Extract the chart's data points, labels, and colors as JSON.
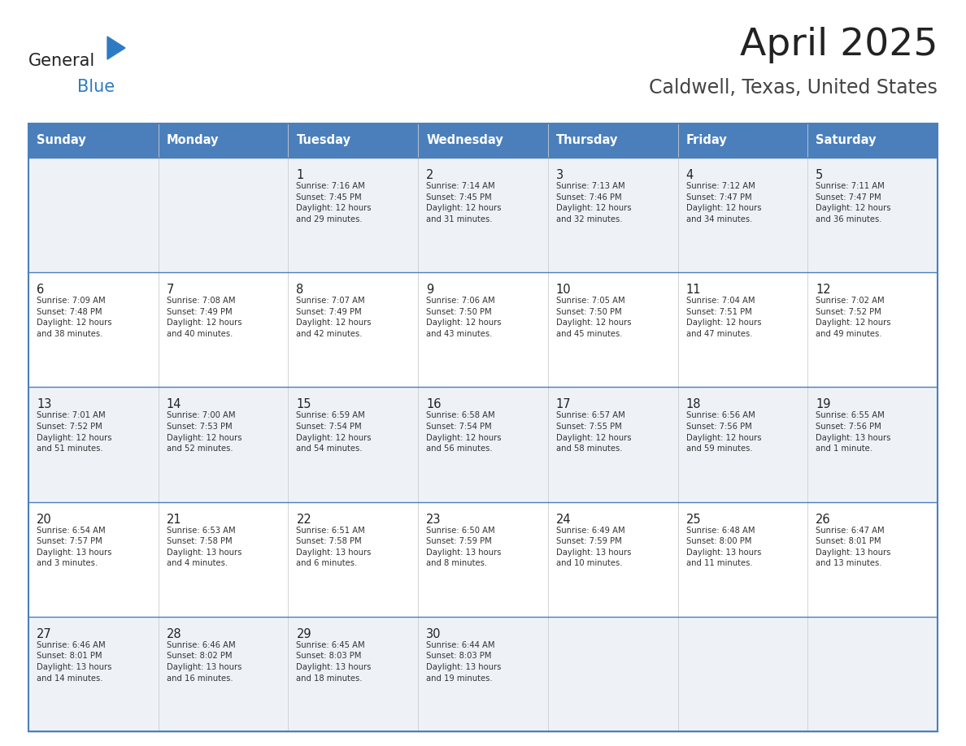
{
  "title": "April 2025",
  "subtitle": "Caldwell, Texas, United States",
  "header_color": "#4a7fbc",
  "header_text_color": "#ffffff",
  "cell_bg_light": "#eef2f7",
  "cell_bg_white": "#ffffff",
  "border_color": "#4a7fbc",
  "days_of_week": [
    "Sunday",
    "Monday",
    "Tuesday",
    "Wednesday",
    "Thursday",
    "Friday",
    "Saturday"
  ],
  "weeks": [
    [
      {
        "day": "",
        "info": ""
      },
      {
        "day": "",
        "info": ""
      },
      {
        "day": "1",
        "info": "Sunrise: 7:16 AM\nSunset: 7:45 PM\nDaylight: 12 hours\nand 29 minutes."
      },
      {
        "day": "2",
        "info": "Sunrise: 7:14 AM\nSunset: 7:45 PM\nDaylight: 12 hours\nand 31 minutes."
      },
      {
        "day": "3",
        "info": "Sunrise: 7:13 AM\nSunset: 7:46 PM\nDaylight: 12 hours\nand 32 minutes."
      },
      {
        "day": "4",
        "info": "Sunrise: 7:12 AM\nSunset: 7:47 PM\nDaylight: 12 hours\nand 34 minutes."
      },
      {
        "day": "5",
        "info": "Sunrise: 7:11 AM\nSunset: 7:47 PM\nDaylight: 12 hours\nand 36 minutes."
      }
    ],
    [
      {
        "day": "6",
        "info": "Sunrise: 7:09 AM\nSunset: 7:48 PM\nDaylight: 12 hours\nand 38 minutes."
      },
      {
        "day": "7",
        "info": "Sunrise: 7:08 AM\nSunset: 7:49 PM\nDaylight: 12 hours\nand 40 minutes."
      },
      {
        "day": "8",
        "info": "Sunrise: 7:07 AM\nSunset: 7:49 PM\nDaylight: 12 hours\nand 42 minutes."
      },
      {
        "day": "9",
        "info": "Sunrise: 7:06 AM\nSunset: 7:50 PM\nDaylight: 12 hours\nand 43 minutes."
      },
      {
        "day": "10",
        "info": "Sunrise: 7:05 AM\nSunset: 7:50 PM\nDaylight: 12 hours\nand 45 minutes."
      },
      {
        "day": "11",
        "info": "Sunrise: 7:04 AM\nSunset: 7:51 PM\nDaylight: 12 hours\nand 47 minutes."
      },
      {
        "day": "12",
        "info": "Sunrise: 7:02 AM\nSunset: 7:52 PM\nDaylight: 12 hours\nand 49 minutes."
      }
    ],
    [
      {
        "day": "13",
        "info": "Sunrise: 7:01 AM\nSunset: 7:52 PM\nDaylight: 12 hours\nand 51 minutes."
      },
      {
        "day": "14",
        "info": "Sunrise: 7:00 AM\nSunset: 7:53 PM\nDaylight: 12 hours\nand 52 minutes."
      },
      {
        "day": "15",
        "info": "Sunrise: 6:59 AM\nSunset: 7:54 PM\nDaylight: 12 hours\nand 54 minutes."
      },
      {
        "day": "16",
        "info": "Sunrise: 6:58 AM\nSunset: 7:54 PM\nDaylight: 12 hours\nand 56 minutes."
      },
      {
        "day": "17",
        "info": "Sunrise: 6:57 AM\nSunset: 7:55 PM\nDaylight: 12 hours\nand 58 minutes."
      },
      {
        "day": "18",
        "info": "Sunrise: 6:56 AM\nSunset: 7:56 PM\nDaylight: 12 hours\nand 59 minutes."
      },
      {
        "day": "19",
        "info": "Sunrise: 6:55 AM\nSunset: 7:56 PM\nDaylight: 13 hours\nand 1 minute."
      }
    ],
    [
      {
        "day": "20",
        "info": "Sunrise: 6:54 AM\nSunset: 7:57 PM\nDaylight: 13 hours\nand 3 minutes."
      },
      {
        "day": "21",
        "info": "Sunrise: 6:53 AM\nSunset: 7:58 PM\nDaylight: 13 hours\nand 4 minutes."
      },
      {
        "day": "22",
        "info": "Sunrise: 6:51 AM\nSunset: 7:58 PM\nDaylight: 13 hours\nand 6 minutes."
      },
      {
        "day": "23",
        "info": "Sunrise: 6:50 AM\nSunset: 7:59 PM\nDaylight: 13 hours\nand 8 minutes."
      },
      {
        "day": "24",
        "info": "Sunrise: 6:49 AM\nSunset: 7:59 PM\nDaylight: 13 hours\nand 10 minutes."
      },
      {
        "day": "25",
        "info": "Sunrise: 6:48 AM\nSunset: 8:00 PM\nDaylight: 13 hours\nand 11 minutes."
      },
      {
        "day": "26",
        "info": "Sunrise: 6:47 AM\nSunset: 8:01 PM\nDaylight: 13 hours\nand 13 minutes."
      }
    ],
    [
      {
        "day": "27",
        "info": "Sunrise: 6:46 AM\nSunset: 8:01 PM\nDaylight: 13 hours\nand 14 minutes."
      },
      {
        "day": "28",
        "info": "Sunrise: 6:46 AM\nSunset: 8:02 PM\nDaylight: 13 hours\nand 16 minutes."
      },
      {
        "day": "29",
        "info": "Sunrise: 6:45 AM\nSunset: 8:03 PM\nDaylight: 13 hours\nand 18 minutes."
      },
      {
        "day": "30",
        "info": "Sunrise: 6:44 AM\nSunset: 8:03 PM\nDaylight: 13 hours\nand 19 minutes."
      },
      {
        "day": "",
        "info": ""
      },
      {
        "day": "",
        "info": ""
      },
      {
        "day": "",
        "info": ""
      }
    ]
  ],
  "logo_general_color": "#222222",
  "logo_blue_color": "#2e7bc4",
  "logo_triangle_color": "#2e7bc4",
  "title_color": "#222222",
  "subtitle_color": "#444444",
  "day_number_color": "#222222",
  "info_text_color": "#333333",
  "figwidth": 11.88,
  "figheight": 9.18,
  "dpi": 100
}
